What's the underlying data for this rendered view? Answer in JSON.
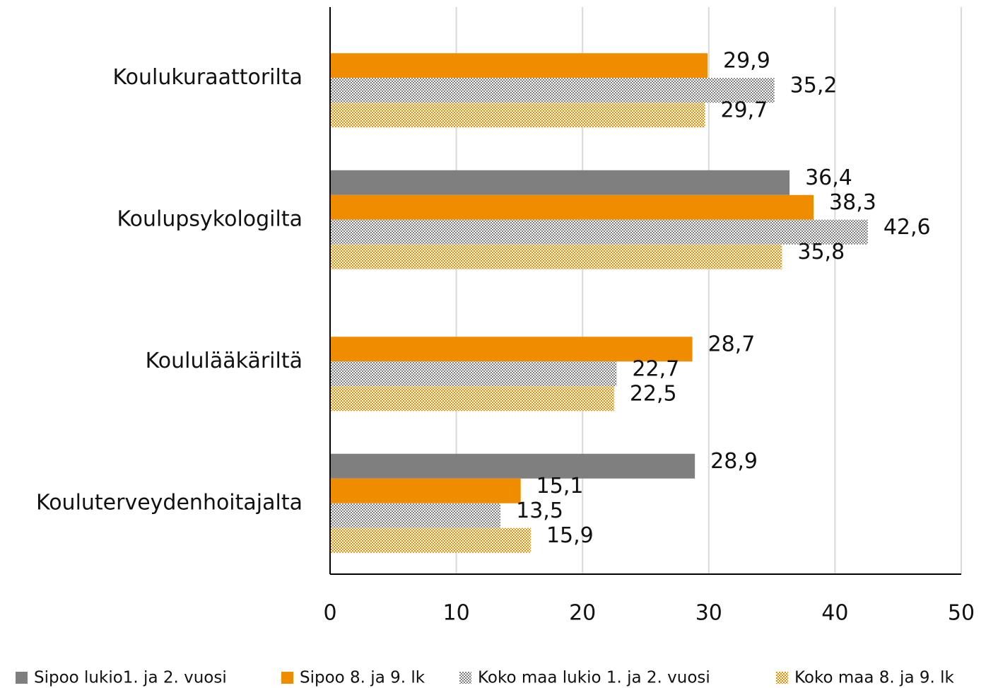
{
  "chart_data": {
    "type": "hbar",
    "categories": [
      "Koulukuraattorilta",
      "Koulupsykologilta",
      "Koululääkäriltä",
      "Kouluterveydenhoitajalta"
    ],
    "series": [
      {
        "name": "Sipoo lukio1. ja 2. vuosi",
        "color": "#7f7f7f",
        "values": [
          null,
          36.4,
          null,
          28.9
        ],
        "value_labels": [
          null,
          "36,4",
          null,
          "28,9"
        ]
      },
      {
        "name": "Sipoo 8. ja 9. lk",
        "color": "#f08c00",
        "values": [
          29.9,
          38.3,
          28.7,
          15.1
        ],
        "value_labels": [
          "29,9",
          "38,3",
          "28,7",
          "15,1"
        ]
      },
      {
        "name": "Koko maa lukio 1. ja 2. vuosi",
        "color": "#7f7f7f",
        "pattern": "checker",
        "values": [
          35.2,
          42.6,
          22.7,
          13.5
        ],
        "value_labels": [
          "35,2",
          "42,6",
          "22,7",
          "13,5"
        ]
      },
      {
        "name": "Koko maa 8. ja 9. lk",
        "color": "#f08c00",
        "pattern": "checker",
        "values": [
          29.7,
          35.8,
          22.5,
          15.9
        ],
        "value_labels": [
          "29,7",
          "35,8",
          "22,5",
          "15,9"
        ]
      }
    ],
    "xlim": [
      0,
      50
    ],
    "xticks": [
      0,
      10,
      20,
      30,
      40,
      50
    ],
    "grid": true,
    "legend": "bottom"
  }
}
